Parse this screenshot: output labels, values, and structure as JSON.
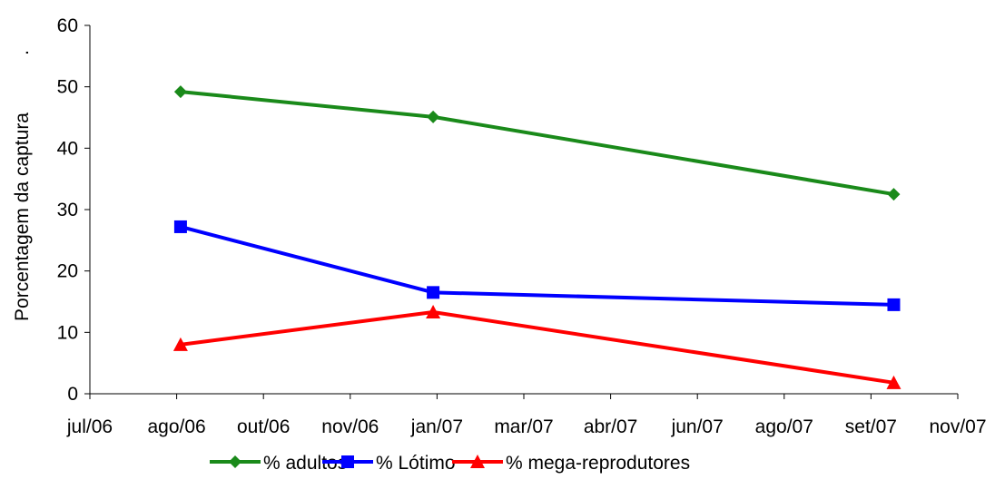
{
  "chart_data": {
    "type": "line",
    "ylabel": "Porcentagem da captura",
    "ylabel_suffix": ".",
    "xlabel": "",
    "ylim": [
      0,
      60
    ],
    "y_ticks": [
      "0",
      "10",
      "20",
      "30",
      "40",
      "50",
      "60"
    ],
    "x_tick_labels": [
      "jul/06",
      "ago/06",
      "out/06",
      "nov/06",
      "jan/07",
      "mar/07",
      "abr/07",
      "jun/07",
      "ago/07",
      "set/07",
      "nov/07"
    ],
    "xlim": [
      "2006-07-01",
      "2007-11-01"
    ],
    "x": [
      "2006-08-21",
      "2007-01-10",
      "2007-09-26"
    ],
    "series": [
      {
        "name": "% adultos",
        "color": "#1a8a1a",
        "marker": "diamond",
        "values": [
          49.2,
          45.1,
          32.5
        ]
      },
      {
        "name": "% Lótimo",
        "color": "#0000ff",
        "marker": "square",
        "values": [
          27.2,
          16.5,
          14.5
        ]
      },
      {
        "name": "% mega-reprodutores",
        "color": "#ff0000",
        "marker": "triangle",
        "values": [
          8.0,
          13.3,
          1.8
        ]
      }
    ],
    "grid": false,
    "legend_position": "bottom"
  }
}
